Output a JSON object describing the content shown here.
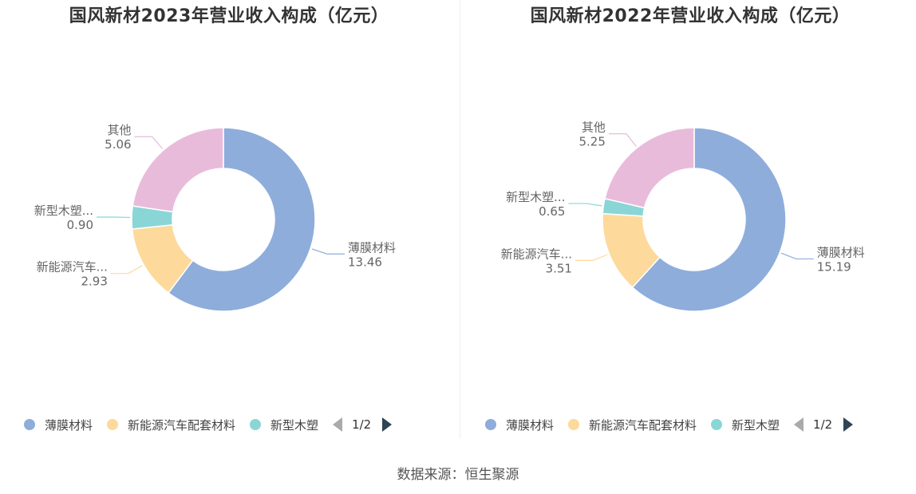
{
  "colors": [
    "#8eaddb",
    "#fdd99b",
    "#8ad6d6",
    "#e8bbdb"
  ],
  "source": "数据来源：恒生聚源",
  "chart_data": [
    {
      "type": "pie",
      "title": "国风新材2023年营业收入构成（亿元）",
      "labels": [
        "薄膜材料",
        "新能源汽车...",
        "新型木塑...",
        "其他"
      ],
      "values": [
        13.46,
        2.93,
        0.9,
        5.06
      ],
      "value_labels": [
        "13.46",
        "2.93",
        "0.90",
        "5.06"
      ],
      "legend": [
        "薄膜材料",
        "新能源汽车配套材料",
        "新型木塑"
      ],
      "legend_page": "1/2",
      "legend_position": "bottom"
    },
    {
      "type": "pie",
      "title": "国风新材2022年营业收入构成（亿元）",
      "labels": [
        "薄膜材料",
        "新能源汽车...",
        "新型木塑...",
        "其他"
      ],
      "values": [
        15.19,
        3.51,
        0.65,
        5.25
      ],
      "value_labels": [
        "15.19",
        "3.51",
        "0.65",
        "5.25"
      ],
      "legend": [
        "薄膜材料",
        "新能源汽车配套材料",
        "新型木塑"
      ],
      "legend_page": "1/2",
      "legend_position": "bottom"
    }
  ]
}
